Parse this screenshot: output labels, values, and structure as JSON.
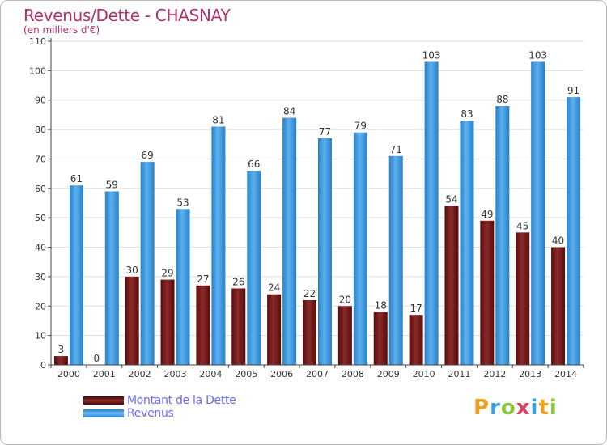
{
  "title": "Revenus/Dette - CHASNAY",
  "subtitle": "(en milliers d'€)",
  "chart_data": {
    "type": "bar",
    "categories": [
      "2000",
      "2001",
      "2002",
      "2003",
      "2004",
      "2005",
      "2006",
      "2007",
      "2008",
      "2009",
      "2010",
      "2011",
      "2012",
      "2013",
      "2014"
    ],
    "series": [
      {
        "name": "Montant de la Dette",
        "color": "#7a1a1a",
        "values": [
          3,
          0,
          30,
          29,
          27,
          26,
          24,
          22,
          20,
          18,
          17,
          54,
          49,
          45,
          40
        ]
      },
      {
        "name": "Revenus",
        "color": "#3d9be0",
        "values": [
          61,
          59,
          69,
          53,
          81,
          66,
          84,
          77,
          79,
          71,
          103,
          83,
          88,
          103,
          91
        ]
      }
    ],
    "ylim": [
      0,
      110
    ],
    "yticks": [
      0,
      10,
      20,
      30,
      40,
      50,
      60,
      70,
      80,
      90,
      100,
      110
    ],
    "grid": true
  },
  "logo": {
    "letters": [
      "P",
      "r",
      "o",
      "x",
      "i",
      "t",
      "i"
    ],
    "colors": [
      "#f0a020",
      "#3aa0e0",
      "#8cc63f",
      "#e04060",
      "#3aa0e0",
      "#f0a020",
      "#8cc63f"
    ]
  }
}
